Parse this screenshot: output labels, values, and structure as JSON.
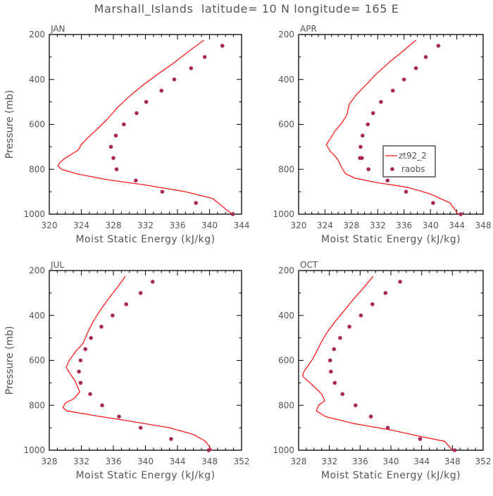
{
  "title": "Marshall_Islands  latitude= 10 N longitude= 165 E",
  "colors": {
    "model_line": "#ff1c1c",
    "obs_marker": "#a8285a",
    "axis": "#000000",
    "text": "#555555"
  },
  "legend": {
    "model_label": "zt92_2",
    "obs_label": "raobs",
    "shown_in_panel": "APR"
  },
  "chart_data": [
    {
      "type": "line",
      "panel": "JAN",
      "xlabel": "Moist Static Energy (kJ/kg)",
      "ylabel": "Pressure (mb)",
      "xlim": [
        320,
        344
      ],
      "xticks": [
        320,
        324,
        328,
        332,
        336,
        340,
        344
      ],
      "ylim": [
        200,
        1000
      ],
      "yticks": [
        200,
        400,
        600,
        800,
        1000
      ],
      "y_inverted": true,
      "series": [
        {
          "name": "zt92_2",
          "style": "line",
          "x": [
            339.3,
            337.4,
            335.6,
            333.6,
            331.7,
            330.0,
            328.5,
            327.3,
            326.0,
            324.8,
            324.0,
            323.6,
            322.9,
            322.0,
            321.3,
            321.1,
            321.5,
            323.4,
            327.0,
            332.0,
            337.0,
            340.4,
            342.8
          ],
          "y": [
            225,
            275,
            325,
            375,
            425,
            475,
            525,
            575,
            620,
            660,
            690,
            715,
            730,
            750,
            770,
            785,
            800,
            820,
            845,
            870,
            900,
            930,
            1000
          ]
        },
        {
          "name": "raobs",
          "style": "markers",
          "x": [
            341.6,
            339.4,
            337.7,
            335.6,
            334.0,
            332.1,
            330.9,
            329.3,
            328.3,
            327.7,
            328.0,
            328.4,
            330.8,
            334.1,
            338.3,
            342.9
          ],
          "y": [
            250,
            300,
            350,
            400,
            450,
            500,
            550,
            600,
            650,
            700,
            750,
            800,
            850,
            900,
            950,
            1000
          ]
        }
      ]
    },
    {
      "type": "line",
      "panel": "APR",
      "xlabel": "Moist Static Energy (kJ/kg)",
      "ylabel": "",
      "xlim": [
        320,
        348
      ],
      "xticks": [
        320,
        324,
        328,
        332,
        336,
        340,
        344,
        348
      ],
      "ylim": [
        200,
        1000
      ],
      "yticks": [
        200,
        400,
        600,
        800,
        1000
      ],
      "y_inverted": true,
      "series": [
        {
          "name": "zt92_2",
          "style": "line",
          "x": [
            337.8,
            335.8,
            333.7,
            331.8,
            330.2,
            328.7,
            327.7,
            327.3,
            326.4,
            325.5,
            324.9,
            324.2,
            324.8,
            325.5,
            326.0,
            326.5,
            327.1,
            328.6,
            332.0,
            336.5,
            340.0,
            343.0,
            344.2
          ],
          "y": [
            225,
            275,
            325,
            375,
            425,
            470,
            510,
            560,
            600,
            630,
            660,
            690,
            720,
            740,
            760,
            790,
            820,
            840,
            860,
            880,
            910,
            950,
            1000
          ]
        },
        {
          "name": "raobs",
          "style": "markers",
          "x": [
            341.2,
            339.3,
            337.8,
            336.0,
            334.3,
            332.5,
            331.3,
            330.5,
            329.7,
            329.4,
            329.3,
            329.6,
            330.6,
            333.5,
            336.3,
            340.4,
            344.6
          ],
          "y": [
            250,
            300,
            350,
            400,
            450,
            500,
            550,
            600,
            650,
            700,
            750,
            750,
            800,
            850,
            900,
            950,
            1000
          ]
        }
      ]
    },
    {
      "type": "line",
      "panel": "JUL",
      "xlabel": "Moist Static Energy (kJ/kg)",
      "ylabel": "Pressure (mb)",
      "xlim": [
        328,
        352
      ],
      "xticks": [
        328,
        332,
        336,
        340,
        344,
        348,
        352
      ],
      "ylim": [
        200,
        1000
      ],
      "yticks": [
        200,
        400,
        600,
        800,
        1000
      ],
      "y_inverted": true,
      "series": [
        {
          "name": "zt92_2",
          "style": "line",
          "x": [
            337.5,
            336.5,
            335.4,
            334.4,
            333.5,
            332.8,
            332.2,
            331.3,
            330.5,
            330.1,
            330.6,
            331.2,
            331.8,
            331.1,
            330.0,
            329.7,
            330.2,
            333.5,
            338.0,
            343.0,
            346.0,
            347.5,
            348.3
          ],
          "y": [
            225,
            275,
            325,
            375,
            425,
            475,
            525,
            560,
            600,
            630,
            660,
            690,
            740,
            770,
            790,
            810,
            825,
            845,
            870,
            900,
            930,
            960,
            1000
          ]
        },
        {
          "name": "raobs",
          "style": "markers",
          "x": [
            340.9,
            339.4,
            337.6,
            335.9,
            334.5,
            333.2,
            332.5,
            331.9,
            331.7,
            331.9,
            333.1,
            334.6,
            336.7,
            339.4,
            343.2,
            347.9
          ],
          "y": [
            250,
            300,
            350,
            400,
            450,
            500,
            550,
            600,
            650,
            700,
            750,
            800,
            850,
            900,
            950,
            1000
          ]
        }
      ]
    },
    {
      "type": "line",
      "panel": "OCT",
      "xlabel": "Moist Static Energy (kJ/kg)",
      "ylabel": "",
      "xlim": [
        328,
        352
      ],
      "xticks": [
        328,
        332,
        336,
        340,
        344,
        348,
        352
      ],
      "ylim": [
        200,
        1000
      ],
      "yticks": [
        200,
        400,
        600,
        800,
        1000
      ],
      "y_inverted": true,
      "series": [
        {
          "name": "zt92_2",
          "style": "line",
          "x": [
            337.7,
            336.5,
            335.2,
            334.0,
            332.8,
            331.8,
            331.1,
            330.5,
            329.9,
            329.3,
            328.7,
            328.5,
            329.8,
            331.0,
            331.4,
            330.6,
            330.3,
            331.5,
            335.0,
            340.0,
            344.0,
            347.0,
            348.0
          ],
          "y": [
            225,
            275,
            325,
            375,
            425,
            470,
            510,
            550,
            590,
            620,
            650,
            670,
            710,
            750,
            780,
            800,
            825,
            850,
            880,
            910,
            940,
            960,
            1000
          ]
        },
        {
          "name": "raobs",
          "style": "markers",
          "x": [
            341.2,
            339.3,
            337.6,
            336.1,
            334.6,
            333.4,
            332.6,
            332.1,
            332.2,
            332.7,
            333.7,
            335.4,
            337.4,
            339.6,
            343.8,
            348.3
          ],
          "y": [
            250,
            300,
            350,
            400,
            450,
            500,
            550,
            600,
            650,
            700,
            750,
            800,
            850,
            900,
            950,
            1000
          ]
        }
      ]
    }
  ]
}
